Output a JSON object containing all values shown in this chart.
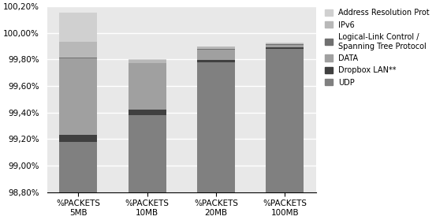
{
  "categories": [
    "%PACKETS\n5MB",
    "%PACKETS\n10MB",
    "%PACKETS\n20MB",
    "%PACKETS\n100MB"
  ],
  "series": [
    {
      "label": "UDP",
      "color": "#808080",
      "values": [
        0.38,
        0.58,
        0.98,
        1.08
      ]
    },
    {
      "label": "Dropbox LAN**",
      "color": "#404040",
      "values": [
        0.05,
        0.04,
        0.015,
        0.01
      ]
    },
    {
      "label": "DATA",
      "color": "#a0a0a0",
      "values": [
        0.58,
        0.35,
        0.08,
        0.02
      ]
    },
    {
      "label": "Logical-Link Control /\nSpanning Tree Protocol",
      "color": "#707070",
      "values": [
        0.005,
        0.005,
        0.005,
        0.005
      ]
    },
    {
      "label": "IPv6",
      "color": "#b8b8b8",
      "values": [
        0.12,
        0.02,
        0.015,
        0.008
      ]
    },
    {
      "label": "Address Resolution Prot",
      "color": "#d0d0d0",
      "values": [
        0.22,
        0.005,
        0.005,
        0.005
      ]
    }
  ],
  "ymin": 98.8,
  "ymax": 100.2,
  "yticks": [
    98.8,
    99.0,
    99.2,
    99.4,
    99.6,
    99.8,
    100.0,
    100.2
  ],
  "ytick_labels": [
    "98,80%",
    "99,00%",
    "99,20%",
    "99,40%",
    "99,60%",
    "99,80%",
    "100,00%",
    "100,20%"
  ],
  "base_value": 98.8,
  "bar_width": 0.55,
  "figsize": [
    5.53,
    2.79
  ],
  "dpi": 100
}
